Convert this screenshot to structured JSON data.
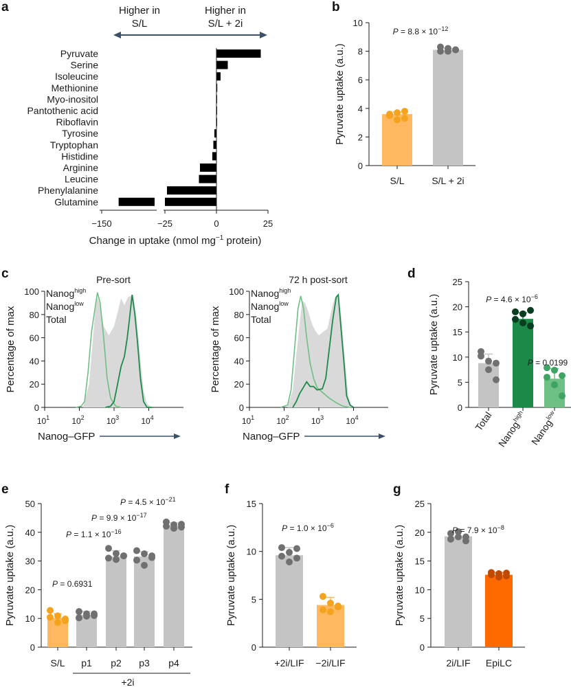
{
  "panel_labels": {
    "a": "a",
    "b": "b",
    "c": "c",
    "d": "d",
    "e": "e",
    "f": "f",
    "g": "g"
  },
  "colors": {
    "bar_black": "#000000",
    "grey_bar": "#c4c4c4",
    "grey_dot": "#707070",
    "orange_light_bar": "#ffb860",
    "orange_dot": "#f5a31c",
    "orange_strong_bar": "#ff6a00",
    "orange_strong_dot": "#bf4a00",
    "green_dark": "#1b8a48",
    "green_dark_dot": "#0a3d20",
    "green_light": "#6dbf83",
    "green_light_dot": "#3fa363",
    "total_fill": "#d9d9d9",
    "arrow": "#3c5166",
    "orange_text": "#f5a623",
    "grey_text": "#8a8a8a"
  },
  "chart_data": [
    {
      "panel": "a",
      "type": "bar",
      "orientation": "horizontal",
      "header_left": [
        "Higher in",
        "S/L"
      ],
      "header_right": [
        "Higher in",
        "S/L + 2i"
      ],
      "xlabel_main": "Change in uptake (nmol mg",
      "xlabel_sup": "−1",
      "xlabel_end": " protein)",
      "axis_break": true,
      "xticks": [
        "−150",
        "−25",
        "0",
        "25"
      ],
      "xtick_values": [
        -150,
        -25,
        0,
        25
      ],
      "categories": [
        "Pyruvate",
        "Serine",
        "Isoleucine",
        "Methionine",
        "Myo-inositol",
        "Pantothenic acid",
        "Riboflavin",
        "Tyrosine",
        "Tryptophan",
        "Histidine",
        "Arginine",
        "Leucine",
        "Phenylalanine",
        "Glutamine"
      ],
      "values": [
        21.5,
        5.5,
        2,
        0.4,
        0.1,
        0.1,
        0.1,
        -1,
        -1.5,
        -2,
        -8,
        -8.5,
        -24,
        -110
      ]
    },
    {
      "panel": "b",
      "type": "bar",
      "ylabel": "Pyruvate uptake (a.u.)",
      "ylim": [
        0,
        10
      ],
      "yticks": [
        "0",
        "2",
        "4",
        "6",
        "8",
        "10"
      ],
      "ytick_values": [
        0,
        2,
        4,
        6,
        8,
        10
      ],
      "categories": [
        "S/L",
        "S/L + 2i"
      ],
      "values": [
        3.6,
        8.1
      ],
      "errors": [
        0.15,
        0.1
      ],
      "points": [
        [
          3.5,
          3.7,
          3.8,
          3.6,
          3.2,
          3.3
        ],
        [
          8.0,
          8.2,
          8.1,
          8.3,
          8.0,
          8.1
        ]
      ],
      "pvalue": {
        "prefix": "P",
        "text": " = 8.8 × 10",
        "exp": "−12"
      }
    },
    {
      "panel": "c",
      "type": "histogram",
      "titles": [
        "Pre-sort",
        "72 h post-sort"
      ],
      "ylabel": "Percentage of max",
      "xlabel": "Nanog–GFP",
      "ylim": [
        0,
        100
      ],
      "yticks": [
        "0",
        "20",
        "40",
        "60",
        "80",
        "100"
      ],
      "ytick_values": [
        0,
        20,
        40,
        60,
        80,
        100
      ],
      "xticks_base": "10",
      "xticks_exp": [
        "1",
        "2",
        "3",
        "4"
      ],
      "legend": [
        {
          "base": "Nanog",
          "sup": "high"
        },
        {
          "base": "Nanog",
          "sup": "low"
        },
        {
          "label": "Total"
        }
      ],
      "xlog_range": [
        1,
        5
      ],
      "curves_pre": {
        "total": [
          [
            1.5,
            0
          ],
          [
            2.1,
            0
          ],
          [
            2.28,
            20
          ],
          [
            2.38,
            55
          ],
          [
            2.46,
            84
          ],
          [
            2.52,
            95
          ],
          [
            2.6,
            88
          ],
          [
            2.7,
            70
          ],
          [
            2.85,
            62
          ],
          [
            3.0,
            70
          ],
          [
            3.12,
            84
          ],
          [
            3.2,
            94
          ],
          [
            3.3,
            88
          ],
          [
            3.4,
            95
          ],
          [
            3.55,
            97
          ],
          [
            3.65,
            78
          ],
          [
            3.75,
            45
          ],
          [
            3.85,
            15
          ],
          [
            3.95,
            3
          ],
          [
            4.1,
            0
          ]
        ],
        "low": [
          [
            1.9,
            0
          ],
          [
            2.05,
            1
          ],
          [
            2.15,
            5
          ],
          [
            2.25,
            30
          ],
          [
            2.35,
            65
          ],
          [
            2.45,
            85
          ],
          [
            2.52,
            99
          ],
          [
            2.6,
            90
          ],
          [
            2.7,
            60
          ],
          [
            2.8,
            25
          ],
          [
            2.9,
            8
          ],
          [
            3.05,
            1
          ],
          [
            3.2,
            0
          ]
        ],
        "high": [
          [
            2.75,
            0
          ],
          [
            2.9,
            1
          ],
          [
            3.0,
            5
          ],
          [
            3.1,
            20
          ],
          [
            3.2,
            35
          ],
          [
            3.3,
            44
          ],
          [
            3.38,
            60
          ],
          [
            3.44,
            75
          ],
          [
            3.52,
            97
          ],
          [
            3.6,
            80
          ],
          [
            3.68,
            55
          ],
          [
            3.76,
            25
          ],
          [
            3.85,
            5
          ],
          [
            3.95,
            0
          ],
          [
            4.1,
            0
          ]
        ]
      },
      "curves_post": {
        "total": [
          [
            1.6,
            0
          ],
          [
            2.1,
            0
          ],
          [
            2.25,
            15
          ],
          [
            2.35,
            45
          ],
          [
            2.45,
            73
          ],
          [
            2.52,
            92
          ],
          [
            2.6,
            90
          ],
          [
            2.7,
            82
          ],
          [
            2.8,
            72
          ],
          [
            2.9,
            66
          ],
          [
            3.0,
            62
          ],
          [
            3.12,
            65
          ],
          [
            3.25,
            68
          ],
          [
            3.35,
            82
          ],
          [
            3.45,
            94
          ],
          [
            3.55,
            97
          ],
          [
            3.65,
            78
          ],
          [
            3.75,
            42
          ],
          [
            3.85,
            10
          ],
          [
            3.95,
            0
          ]
        ],
        "low": [
          [
            1.9,
            0
          ],
          [
            2.1,
            2
          ],
          [
            2.2,
            15
          ],
          [
            2.3,
            50
          ],
          [
            2.4,
            85
          ],
          [
            2.48,
            96
          ],
          [
            2.56,
            85
          ],
          [
            2.65,
            60
          ],
          [
            2.75,
            38
          ],
          [
            2.85,
            25
          ],
          [
            2.95,
            17
          ],
          [
            3.1,
            13
          ],
          [
            3.3,
            8
          ],
          [
            3.5,
            4
          ],
          [
            3.7,
            1
          ],
          [
            3.9,
            0
          ]
        ],
        "high": [
          [
            2.25,
            0
          ],
          [
            2.35,
            5
          ],
          [
            2.45,
            12
          ],
          [
            2.55,
            17
          ],
          [
            2.65,
            22
          ],
          [
            2.75,
            18
          ],
          [
            2.85,
            18
          ],
          [
            2.95,
            15
          ],
          [
            3.1,
            16
          ],
          [
            3.2,
            25
          ],
          [
            3.3,
            50
          ],
          [
            3.4,
            75
          ],
          [
            3.5,
            95
          ],
          [
            3.56,
            97
          ],
          [
            3.62,
            75
          ],
          [
            3.72,
            40
          ],
          [
            3.8,
            10
          ],
          [
            3.9,
            2
          ],
          [
            4.0,
            0
          ]
        ]
      }
    },
    {
      "panel": "d",
      "type": "bar",
      "ylabel": "Pyruvate uptake (a.u.)",
      "ylim": [
        0,
        25
      ],
      "yticks": [
        "0",
        "5",
        "10",
        "15",
        "20",
        "25"
      ],
      "ytick_values": [
        0,
        5,
        10,
        15,
        20,
        25
      ],
      "categories": [
        {
          "base": "Total"
        },
        {
          "base": "Nanog",
          "sup": "high"
        },
        {
          "base": "Nanog",
          "sup": "low"
        }
      ],
      "values": [
        8.8,
        17.6,
        5.7
      ],
      "errors": [
        1.8,
        1.2,
        2.0
      ],
      "points": [
        [
          11.1,
          9.2,
          8.8,
          10.2,
          7.5,
          5.5
        ],
        [
          19.0,
          18.6,
          19.3,
          17.5,
          16.8,
          16.2
        ],
        [
          7.9,
          7.4,
          6.3,
          6.0,
          4.5,
          2.3
        ]
      ],
      "pvalues": [
        {
          "prefix": "P",
          "text": " = 4.6 × 10",
          "exp": "−6"
        },
        {
          "prefix": "P",
          "text": " = 0.0199",
          "exp": ""
        }
      ]
    },
    {
      "panel": "e",
      "type": "bar",
      "ylabel": "Pyruvate uptake (a.u.)",
      "ylim": [
        0,
        50
      ],
      "yticks": [
        "0",
        "10",
        "20",
        "30",
        "40",
        "50"
      ],
      "ytick_values": [
        0,
        10,
        20,
        30,
        40,
        50
      ],
      "categories": [
        "S/L",
        "p1",
        "p2",
        "p3",
        "p4"
      ],
      "group_label": "+2i",
      "values": [
        10.2,
        11.3,
        31.6,
        31.6,
        42.3
      ],
      "errors": [
        1.4,
        1.1,
        2.0,
        1.6,
        1.0
      ],
      "points": [
        [
          12.8,
          10.9,
          9.2,
          10.4,
          8.6,
          9.8
        ],
        [
          12.4,
          11.6,
          11.0,
          10.2,
          10.8,
          11.6
        ],
        [
          34.4,
          32.6,
          31.8,
          31.0,
          30.5,
          31.8
        ],
        [
          33.6,
          32.5,
          31.8,
          30.3,
          28.5,
          31.2
        ],
        [
          43.6,
          42.6,
          41.8,
          42.1,
          41.4,
          42.8
        ]
      ],
      "pvalues": [
        {
          "prefix": "P",
          "text": " = 0.6931",
          "exp": ""
        },
        {
          "prefix": "P",
          "text": " = 1.1 × 10",
          "exp": "−16"
        },
        {
          "prefix": "P",
          "text": " = 9.9 × 10",
          "exp": "−17"
        },
        {
          "prefix": "P",
          "text": " = 4.5 × 10",
          "exp": "−21"
        }
      ]
    },
    {
      "panel": "f",
      "type": "bar",
      "ylabel": "Pyruvate uptake (a.u.)",
      "ylim": [
        0,
        15
      ],
      "yticks": [
        "0",
        "5",
        "10",
        "15"
      ],
      "ytick_values": [
        0,
        5,
        10,
        15
      ],
      "categories": [
        "+2i/LIF",
        "−2i/LIF"
      ],
      "values": [
        9.6,
        4.4
      ],
      "errors": [
        0.8,
        0.8
      ],
      "points": [
        [
          10.4,
          9.9,
          9.3,
          9.5,
          8.9,
          10.3
        ],
        [
          5.3,
          4.6,
          4.2,
          3.9,
          3.7,
          4.3
        ]
      ],
      "pvalue": {
        "prefix": "P",
        "text": " = 1.0 × 10",
        "exp": "−6"
      }
    },
    {
      "panel": "g",
      "type": "bar",
      "ylabel": "Pyruvate uptake (a.u.)",
      "ylim": [
        0,
        25
      ],
      "yticks": [
        "0",
        "5",
        "10",
        "15",
        "20",
        "25"
      ],
      "ytick_values": [
        0,
        5,
        10,
        15,
        20,
        25
      ],
      "categories": [
        "2i/LIF",
        "EpiLC"
      ],
      "values": [
        19.3,
        12.6
      ],
      "errors": [
        1.0,
        0.4
      ],
      "points": [
        [
          19.8,
          19.2,
          18.5,
          18.8,
          20.1,
          19.2
        ],
        [
          13.0,
          12.8,
          12.4,
          12.6,
          12.2,
          12.9
        ]
      ],
      "pvalue": {
        "prefix": "P",
        "text": " = 7.9 × 10",
        "exp": "−8"
      }
    }
  ]
}
